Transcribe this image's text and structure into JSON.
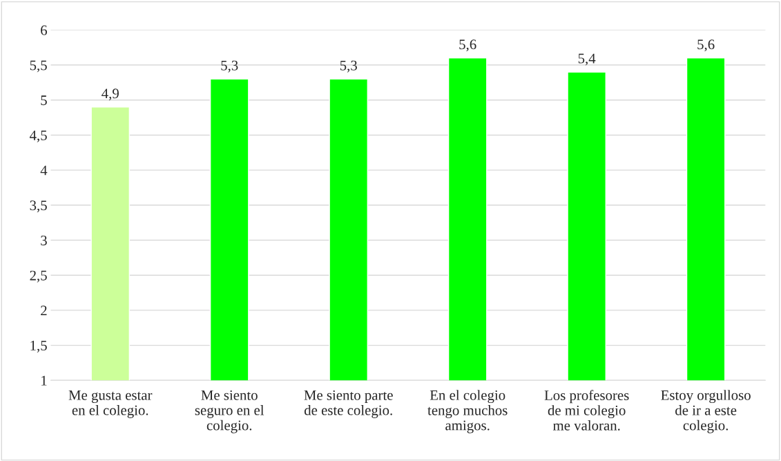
{
  "chart_data": {
    "type": "bar",
    "categories": [
      "Me gusta estar\nen el colegio.",
      "Me siento\nseguro en el\ncolegio.",
      "Me siento parte\nde este colegio.",
      "En el colegio\ntengo muchos\namigos.",
      "Los profesores\nde mi colegio\nme valoran.",
      "Estoy orgulloso\nde ir a este\ncolegio."
    ],
    "values": [
      4.9,
      5.3,
      5.3,
      5.6,
      5.4,
      5.6
    ],
    "value_labels": [
      "4,9",
      "5,3",
      "5,3",
      "5,6",
      "5,4",
      "5,6"
    ],
    "colors": [
      "#ccff99",
      "#00ff00",
      "#00ff00",
      "#00ff00",
      "#00ff00",
      "#00ff00"
    ],
    "ylim": [
      1,
      6
    ],
    "yticks": [
      1,
      {
        "value": 1.5,
        "label": "1,5"
      },
      2,
      {
        "value": 2.5,
        "label": "2,5"
      },
      3,
      {
        "value": 3.5,
        "label": "3,5"
      },
      4,
      {
        "value": 4.5,
        "label": "4,5"
      },
      5,
      {
        "value": 5.5,
        "label": "5,5"
      },
      6
    ],
    "grid": "y"
  }
}
